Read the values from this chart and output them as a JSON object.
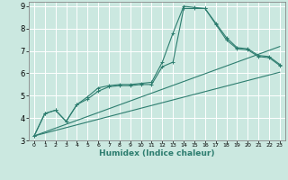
{
  "xlabel": "Humidex (Indice chaleur)",
  "bg_color": "#cbe8e0",
  "grid_color": "#ffffff",
  "line_color": "#2d7d6f",
  "xlim": [
    -0.5,
    23.5
  ],
  "ylim": [
    3,
    9.2
  ],
  "xticks": [
    0,
    1,
    2,
    3,
    4,
    5,
    6,
    7,
    8,
    9,
    10,
    11,
    12,
    13,
    14,
    15,
    16,
    17,
    18,
    19,
    20,
    21,
    22,
    23
  ],
  "yticks": [
    3,
    4,
    5,
    6,
    7,
    8,
    9
  ],
  "series": [
    {
      "x": [
        0,
        1,
        2,
        3,
        4,
        5,
        6,
        7,
        8,
        9,
        10,
        11,
        12,
        13,
        14,
        15,
        16,
        17,
        18,
        19,
        20,
        21,
        22,
        23
      ],
      "y": [
        3.2,
        4.2,
        4.35,
        3.85,
        4.6,
        4.95,
        5.35,
        5.45,
        5.5,
        5.5,
        5.55,
        5.6,
        6.5,
        7.8,
        9.0,
        8.95,
        8.9,
        8.25,
        7.6,
        7.15,
        7.1,
        6.8,
        6.75,
        6.4
      ],
      "marker": true
    },
    {
      "x": [
        0,
        1,
        2,
        3,
        4,
        5,
        6,
        7,
        8,
        9,
        10,
        11,
        12,
        13,
        14,
        15,
        16,
        17,
        18,
        19,
        20,
        21,
        22,
        23
      ],
      "y": [
        3.2,
        4.2,
        4.35,
        3.85,
        4.6,
        4.85,
        5.2,
        5.4,
        5.45,
        5.45,
        5.5,
        5.5,
        6.3,
        6.5,
        8.9,
        8.9,
        8.9,
        8.2,
        7.5,
        7.1,
        7.05,
        6.75,
        6.7,
        6.35
      ],
      "marker": true
    },
    {
      "x": [
        0,
        23
      ],
      "y": [
        3.2,
        7.2
      ],
      "marker": false
    },
    {
      "x": [
        0,
        23
      ],
      "y": [
        3.2,
        6.05
      ],
      "marker": false
    }
  ]
}
